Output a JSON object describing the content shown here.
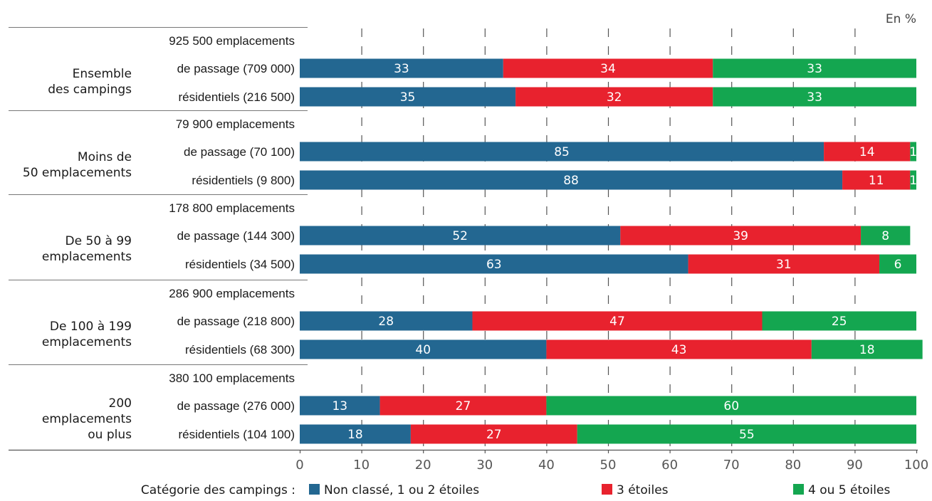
{
  "title": "",
  "colors": {
    "c1": "#236791",
    "c2": "#e8222e",
    "c3": "#14a650"
  },
  "chart_data": {
    "type": "bar",
    "orientation": "horizontal",
    "stacked": true,
    "unit": "En %",
    "xlim": [
      0,
      100
    ],
    "xticks": [
      "0",
      "10",
      "20",
      "30",
      "40",
      "50",
      "60",
      "70",
      "80",
      "90",
      "100"
    ],
    "grid": "vertical dashed",
    "legend_title": "Catégorie des campings :",
    "legend_position": "bottom",
    "series": [
      {
        "name": "Non classé, 1 ou 2 étoiles",
        "color": "#236791"
      },
      {
        "name": "3 étoiles",
        "color": "#e8222e"
      },
      {
        "name": "4 ou 5 étoiles",
        "color": "#14a650"
      }
    ],
    "groups": [
      {
        "label_lines": [
          "Ensemble",
          "des campings"
        ],
        "total": "925 500 emplacements",
        "rows": [
          {
            "label": "de passage (709 000)",
            "values": [
              33,
              34,
              33
            ]
          },
          {
            "label": "résidentiels (216 500)",
            "values": [
              35,
              32,
              33
            ]
          }
        ]
      },
      {
        "label_lines": [
          "Moins de",
          "50 emplacements"
        ],
        "total": "79 900 emplacements",
        "rows": [
          {
            "label": "de passage (70 100)",
            "values": [
              85,
              14,
              1
            ]
          },
          {
            "label": "résidentiels (9 800)",
            "values": [
              88,
              11,
              1
            ]
          }
        ]
      },
      {
        "label_lines": [
          "De 50 à 99",
          "emplacements"
        ],
        "total": "178 800 emplacements",
        "rows": [
          {
            "label": "de passage (144 300)",
            "values": [
              52,
              39,
              8
            ]
          },
          {
            "label": "résidentiels (34 500)",
            "values": [
              63,
              31,
              6
            ]
          }
        ]
      },
      {
        "label_lines": [
          "De 100 à 199",
          "emplacements"
        ],
        "total": "286 900 emplacements",
        "rows": [
          {
            "label": "de passage (218 800)",
            "values": [
              28,
              47,
              25
            ]
          },
          {
            "label": "résidentiels (68 300)",
            "values": [
              40,
              43,
              18
            ]
          }
        ]
      },
      {
        "label_lines": [
          "200",
          "emplacements",
          "ou plus"
        ],
        "total": "380 100 emplacements",
        "rows": [
          {
            "label": "de passage (276 000)",
            "values": [
              13,
              27,
              60
            ]
          },
          {
            "label": "résidentiels (104 100)",
            "values": [
              18,
              27,
              55
            ]
          }
        ]
      }
    ]
  }
}
